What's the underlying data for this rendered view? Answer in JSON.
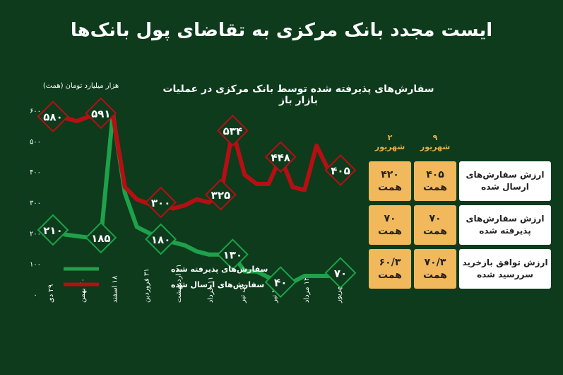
{
  "title": "ایست مجدد بانک مرکزی به تقاضای پول بانک‌ها",
  "chart_data": {
    "type": "line",
    "title": "سفارش‌های پذیرفته شده توسط بانک مرکزی در عملیات بازار باز",
    "ylabel": "هزار میلیارد تومان (همت)",
    "ylim": [
      0,
      600
    ],
    "yticks": [
      {
        "value": 0,
        "label": "۰"
      },
      {
        "value": 100,
        "label": "۱۰۰"
      },
      {
        "value": 200,
        "label": "۲۰۰"
      },
      {
        "value": 300,
        "label": "۳۰۰"
      },
      {
        "value": 400,
        "label": "۴۰۰"
      },
      {
        "value": 500,
        "label": "۵۰۰"
      },
      {
        "value": 600,
        "label": "۶۰۰"
      }
    ],
    "x_labels": [
      "۲۹ دی",
      "۲۰ بهمن",
      "۱۸ اسفند",
      "۳۱ فروردین",
      "۲۱ اردیبهشت",
      "۱۱ خرداد",
      "یک تیر",
      "۲۲ تیر",
      "۱۲ مرداد",
      "۲ شهریور"
    ],
    "series": [
      {
        "name": "سفارش‌های پذیرفته شده",
        "color": "#1ea14a",
        "values": [
          210,
          195,
          190,
          185,
          185,
          590,
          330,
          220,
          200,
          180,
          170,
          160,
          140,
          130,
          130,
          130,
          75,
          75,
          55,
          40,
          40,
          60,
          60,
          60,
          70
        ],
        "labels": [
          {
            "index": 0,
            "text": "۲۱۰"
          },
          {
            "index": 4,
            "text": "۱۸۵"
          },
          {
            "index": 9,
            "text": "۱۸۰"
          },
          {
            "index": 15,
            "text": "۱۳۰"
          },
          {
            "index": 19,
            "text": "۴۰"
          },
          {
            "index": 24,
            "text": "۷۰"
          }
        ]
      },
      {
        "name": "سفارش‌های ارسال شده",
        "color": "#b50f14",
        "values": [
          580,
          575,
          565,
          580,
          591,
          585,
          350,
          310,
          295,
          300,
          280,
          290,
          310,
          300,
          325,
          534,
          390,
          360,
          360,
          448,
          350,
          340,
          485,
          405,
          405
        ],
        "labels": [
          {
            "index": 0,
            "text": "۵۸۰"
          },
          {
            "index": 4,
            "text": "۵۹۱"
          },
          {
            "index": 9,
            "text": "۳۰۰"
          },
          {
            "index": 14,
            "text": "۳۲۵"
          },
          {
            "index": 15,
            "text": "۵۳۴"
          },
          {
            "index": 19,
            "text": "۴۴۸"
          },
          {
            "index": 24,
            "text": "۴۰۵"
          }
        ]
      }
    ],
    "legend": "bottom-left"
  },
  "table": {
    "columns": [
      [
        "۹",
        "شهریور"
      ],
      [
        "۲",
        "شهریور"
      ]
    ],
    "rows": [
      {
        "label": [
          "ارزش سفارش‌های",
          "ارسال شده"
        ],
        "values": [
          [
            "۴۰۵",
            "همت"
          ],
          [
            "۴۲۰",
            "همت"
          ]
        ]
      },
      {
        "label": [
          "ارزش سفارش‌های",
          "پذیرفته شده"
        ],
        "values": [
          [
            "۷۰",
            "همت"
          ],
          [
            "۷۰",
            "همت"
          ]
        ]
      },
      {
        "label": [
          "ارزش توافق بازخرید",
          "سررسید شده"
        ],
        "values": [
          [
            "۷۰/۳",
            "همت"
          ],
          [
            "۶۰/۳",
            "همت"
          ]
        ]
      }
    ]
  }
}
